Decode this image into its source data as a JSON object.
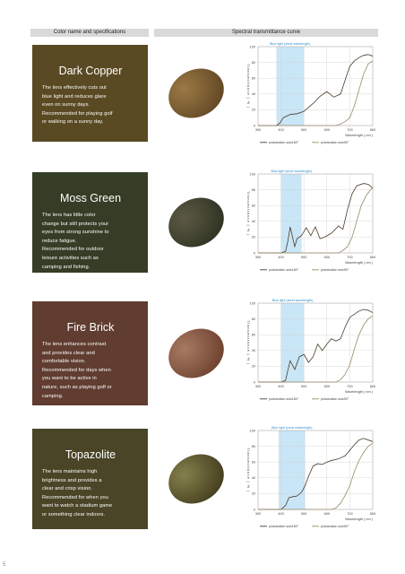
{
  "header": {
    "left": "Color name and specifications",
    "right": "Spectral transmittance curve"
  },
  "page_number": "5",
  "lenses": [
    {
      "name": "Dark Copper",
      "description": [
        "The lens effectively cuts out",
        "blue light and reduces glare",
        "even on sunny days.",
        "Recommended for playing golf",
        "or walking on a sunny day."
      ],
      "swatch_color": "#5a4a23",
      "lens_colors": [
        "#9c7a46",
        "#5e4422"
      ]
    },
    {
      "name": "Moss Green",
      "description": [
        "The lens has little color",
        "change but still protects your",
        "eyes from strong sunshine to",
        "reduce fatigue.",
        "Recommended for outdoor",
        "leisure activities such as",
        "camping and fishing."
      ],
      "swatch_color": "#363d26",
      "lens_colors": [
        "#5c5a44",
        "#2c3020"
      ]
    },
    {
      "name": "Fire Brick",
      "description": [
        "The lens enhances contrast",
        "and provides clear and",
        "comfortable vision.",
        "Recommended for days when",
        "you want to be active in",
        "nature, such as playing golf or",
        "camping."
      ],
      "swatch_color": "#603d30",
      "lens_colors": [
        "#a87a62",
        "#6a3e2c"
      ]
    },
    {
      "name": "Topazolite",
      "description": [
        "The lens maintains high",
        "brightness and provides a",
        "clear and crisp vision.",
        "Recommended for when you",
        "want to watch a stadium game",
        "or something clear indoors."
      ],
      "swatch_color": "#4a4527",
      "lens_colors": [
        "#85804c",
        "#40391c"
      ]
    }
  ],
  "chart_common": {
    "band_label": "Blue light (short wavelength)",
    "ylabel": "Transmittance ( % )",
    "xlabel": "Wavelength ( nm )",
    "xticks": [
      300,
      400,
      500,
      600,
      700,
      800
    ],
    "yticks": [
      0,
      20,
      40,
      60,
      80,
      100
    ],
    "legend": [
      "polarization axis180°",
      "polarization axis90°"
    ]
  },
  "chart_data": [
    {
      "type": "line",
      "xlabel": "Wavelength ( nm )",
      "ylabel": "Transmittance ( % )",
      "xlim": [
        300,
        800
      ],
      "ylim": [
        0,
        100
      ],
      "band": [
        380,
        500
      ],
      "series": [
        {
          "name": "polarization axis180°",
          "x": [
            300,
            380,
            395,
            410,
            440,
            470,
            500,
            540,
            570,
            600,
            630,
            660,
            680,
            700,
            720,
            740,
            760,
            780,
            800
          ],
          "y": [
            0,
            0,
            3,
            10,
            14,
            15,
            18,
            28,
            37,
            43,
            36,
            40,
            58,
            75,
            82,
            86,
            89,
            90,
            88
          ]
        },
        {
          "name": "polarization axis90°",
          "x": [
            300,
            640,
            660,
            680,
            700,
            720,
            740,
            760,
            780,
            800
          ],
          "y": [
            0,
            0,
            2,
            5,
            10,
            25,
            45,
            65,
            78,
            82
          ]
        }
      ]
    },
    {
      "type": "line",
      "xlabel": "Wavelength ( nm )",
      "ylabel": "Transmittance ( % )",
      "xlim": [
        300,
        800
      ],
      "ylim": [
        0,
        100
      ],
      "band": [
        400,
        490
      ],
      "series": [
        {
          "name": "polarization axis180°",
          "x": [
            300,
            400,
            420,
            430,
            440,
            460,
            470,
            490,
            510,
            530,
            550,
            570,
            590,
            620,
            650,
            670,
            690,
            710,
            730,
            760,
            780,
            800
          ],
          "y": [
            0,
            0,
            2,
            15,
            33,
            8,
            18,
            22,
            32,
            22,
            33,
            18,
            20,
            25,
            34,
            30,
            55,
            75,
            85,
            88,
            87,
            82
          ]
        },
        {
          "name": "polarization axis90°",
          "x": [
            300,
            650,
            670,
            690,
            710,
            730,
            750,
            770,
            790,
            800
          ],
          "y": [
            0,
            0,
            3,
            8,
            20,
            40,
            60,
            72,
            80,
            82
          ]
        }
      ]
    },
    {
      "type": "line",
      "xlabel": "Wavelength ( nm )",
      "ylabel": "Transmittance ( % )",
      "xlim": [
        300,
        800
      ],
      "ylim": [
        0,
        100
      ],
      "band": [
        400,
        500
      ],
      "series": [
        {
          "name": "polarization axis180°",
          "x": [
            300,
            400,
            420,
            430,
            440,
            460,
            480,
            500,
            520,
            540,
            560,
            580,
            600,
            620,
            640,
            660,
            680,
            700,
            720,
            740,
            760,
            780,
            800
          ],
          "y": [
            0,
            0,
            2,
            15,
            27,
            16,
            32,
            35,
            25,
            32,
            48,
            40,
            48,
            55,
            52,
            55,
            70,
            82,
            86,
            90,
            92,
            91,
            88
          ]
        },
        {
          "name": "polarization axis90°",
          "x": [
            300,
            640,
            660,
            680,
            700,
            720,
            740,
            760,
            780,
            800
          ],
          "y": [
            0,
            0,
            3,
            10,
            22,
            42,
            60,
            72,
            80,
            84
          ]
        }
      ]
    },
    {
      "type": "line",
      "xlabel": "Wavelength ( nm )",
      "ylabel": "Transmittance ( % )",
      "xlim": [
        300,
        800
      ],
      "ylim": [
        0,
        100
      ],
      "band": [
        390,
        505
      ],
      "series": [
        {
          "name": "polarization axis180°",
          "x": [
            300,
            400,
            420,
            435,
            450,
            470,
            490,
            505,
            520,
            540,
            560,
            580,
            600,
            620,
            650,
            680,
            700,
            720,
            740,
            760,
            780,
            800
          ],
          "y": [
            0,
            0,
            5,
            15,
            16,
            17,
            22,
            30,
            42,
            55,
            58,
            57,
            60,
            62,
            64,
            68,
            75,
            82,
            88,
            90,
            88,
            86
          ]
        },
        {
          "name": "polarization axis90°",
          "x": [
            300,
            620,
            640,
            660,
            680,
            700,
            720,
            740,
            760,
            780,
            800
          ],
          "y": [
            0,
            0,
            2,
            8,
            18,
            30,
            48,
            62,
            72,
            80,
            84
          ]
        }
      ]
    }
  ]
}
